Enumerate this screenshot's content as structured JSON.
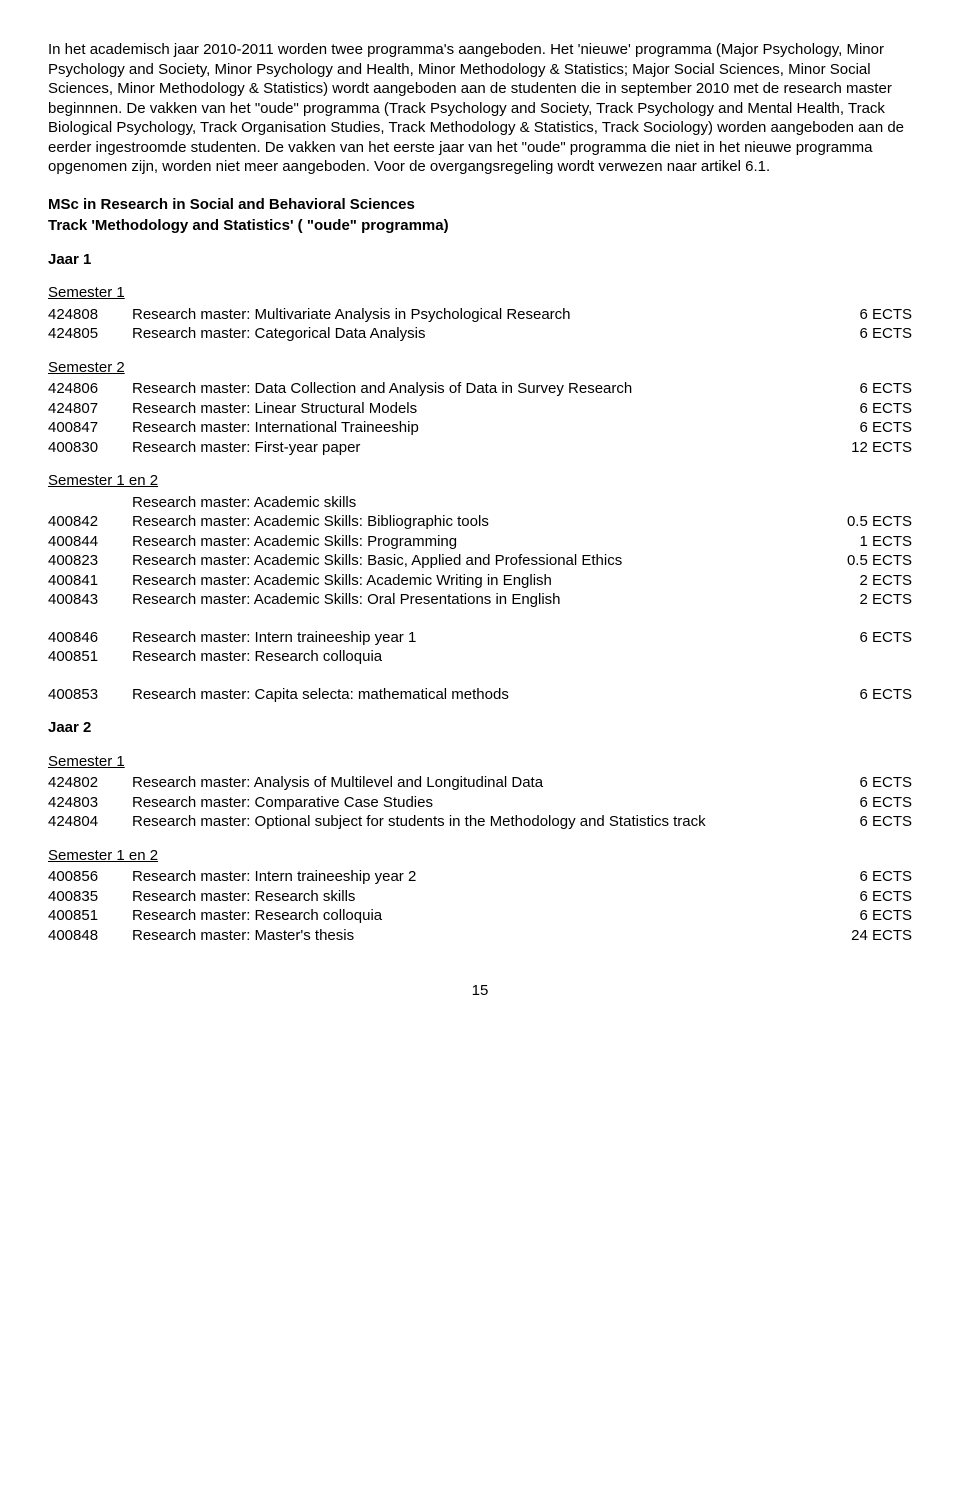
{
  "intro": "In het academisch jaar 2010-2011 worden twee programma's aangeboden. Het 'nieuwe' programma (Major Psychology, Minor Psychology and Society, Minor Psychology and Health, Minor Methodology & Statistics; Major Social Sciences, Minor Social Sciences, Minor Methodology & Statistics) wordt aangeboden aan de studenten die in september 2010 met de research master beginnnen. De vakken van het \"oude\" programma (Track Psychology and Society, Track Psychology and Mental Health, Track Biological Psychology, Track Organisation Studies, Track Methodology & Statistics, Track Sociology) worden aangeboden aan de eerder ingestroomde studenten. De vakken van het eerste jaar van het \"oude\" programma die niet in het nieuwe programma opgenomen zijn, worden niet meer aangeboden. Voor de overgangsregeling wordt verwezen naar artikel 6.1.",
  "msc_title": "MSc in Research in Social and Behavioral Sciences",
  "track_title": "Track 'Methodology and Statistics' ( \"oude\" programma)",
  "year1": "Jaar 1",
  "year2": "Jaar 2",
  "sem1_label": "Semester 1",
  "sem2_label": "Semester 2",
  "sem12_label": "Semester 1 en 2",
  "academic_skills_heading": "Research master: Academic skills",
  "y1_sem1": [
    {
      "code": "424808",
      "title": "Research master: Multivariate Analysis in Psychological Research",
      "ects": "6 ECTS"
    },
    {
      "code": "424805",
      "title": "Research master: Categorical Data Analysis",
      "ects": "6 ECTS"
    }
  ],
  "y1_sem2": [
    {
      "code": "424806",
      "title": "Research master: Data Collection and Analysis of Data in Survey Research",
      "ects": "6 ECTS"
    },
    {
      "code": "424807",
      "title": "Research master: Linear Structural Models",
      "ects": "6 ECTS"
    },
    {
      "code": "400847",
      "title": "Research master: International Traineeship",
      "ects": "6 ECTS"
    },
    {
      "code": "400830",
      "title": "Research master: First-year paper",
      "ects": "12 ECTS"
    }
  ],
  "y1_sem12a": [
    {
      "code": "400842",
      "title": "Research master: Academic Skills: Bibliographic tools",
      "ects": "0.5 ECTS"
    },
    {
      "code": "400844",
      "title": "Research master: Academic Skills: Programming",
      "ects": "1 ECTS"
    },
    {
      "code": "400823",
      "title": "Research master: Academic Skills: Basic, Applied and Professional Ethics",
      "ects": "0.5 ECTS"
    },
    {
      "code": "400841",
      "title": "Research master: Academic Skills: Academic Writing in English",
      "ects": "2 ECTS"
    },
    {
      "code": "400843",
      "title": "Research master: Academic Skills: Oral Presentations in English",
      "ects": "2 ECTS"
    }
  ],
  "y1_sem12b": [
    {
      "code": "400846",
      "title": "Research master: Intern traineeship year 1",
      "ects": "6 ECTS"
    },
    {
      "code": "400851",
      "title": "Research master: Research colloquia",
      "ects": ""
    }
  ],
  "y1_sem12c": [
    {
      "code": "400853",
      "title": "Research master: Capita selecta: mathematical methods",
      "ects": "6 ECTS"
    }
  ],
  "y2_sem1": [
    {
      "code": "424802",
      "title": "Research master: Analysis of Multilevel and Longitudinal Data",
      "ects": "6 ECTS"
    },
    {
      "code": "424803",
      "title": "Research master: Comparative Case Studies",
      "ects": "6 ECTS"
    },
    {
      "code": "424804",
      "title": "Research master: Optional subject for students in the Methodology and Statistics track",
      "ects": "6 ECTS"
    }
  ],
  "y2_sem12": [
    {
      "code": "400856",
      "title": "Research master: Intern traineeship year 2",
      "ects": "6 ECTS"
    },
    {
      "code": "400835",
      "title": "Research master: Research skills",
      "ects": "6 ECTS"
    },
    {
      "code": "400851",
      "title": "Research master: Research colloquia",
      "ects": "6 ECTS"
    },
    {
      "code": "400848",
      "title": "Research master: Master's thesis",
      "ects": "24 ECTS"
    }
  ],
  "page_number": "15"
}
